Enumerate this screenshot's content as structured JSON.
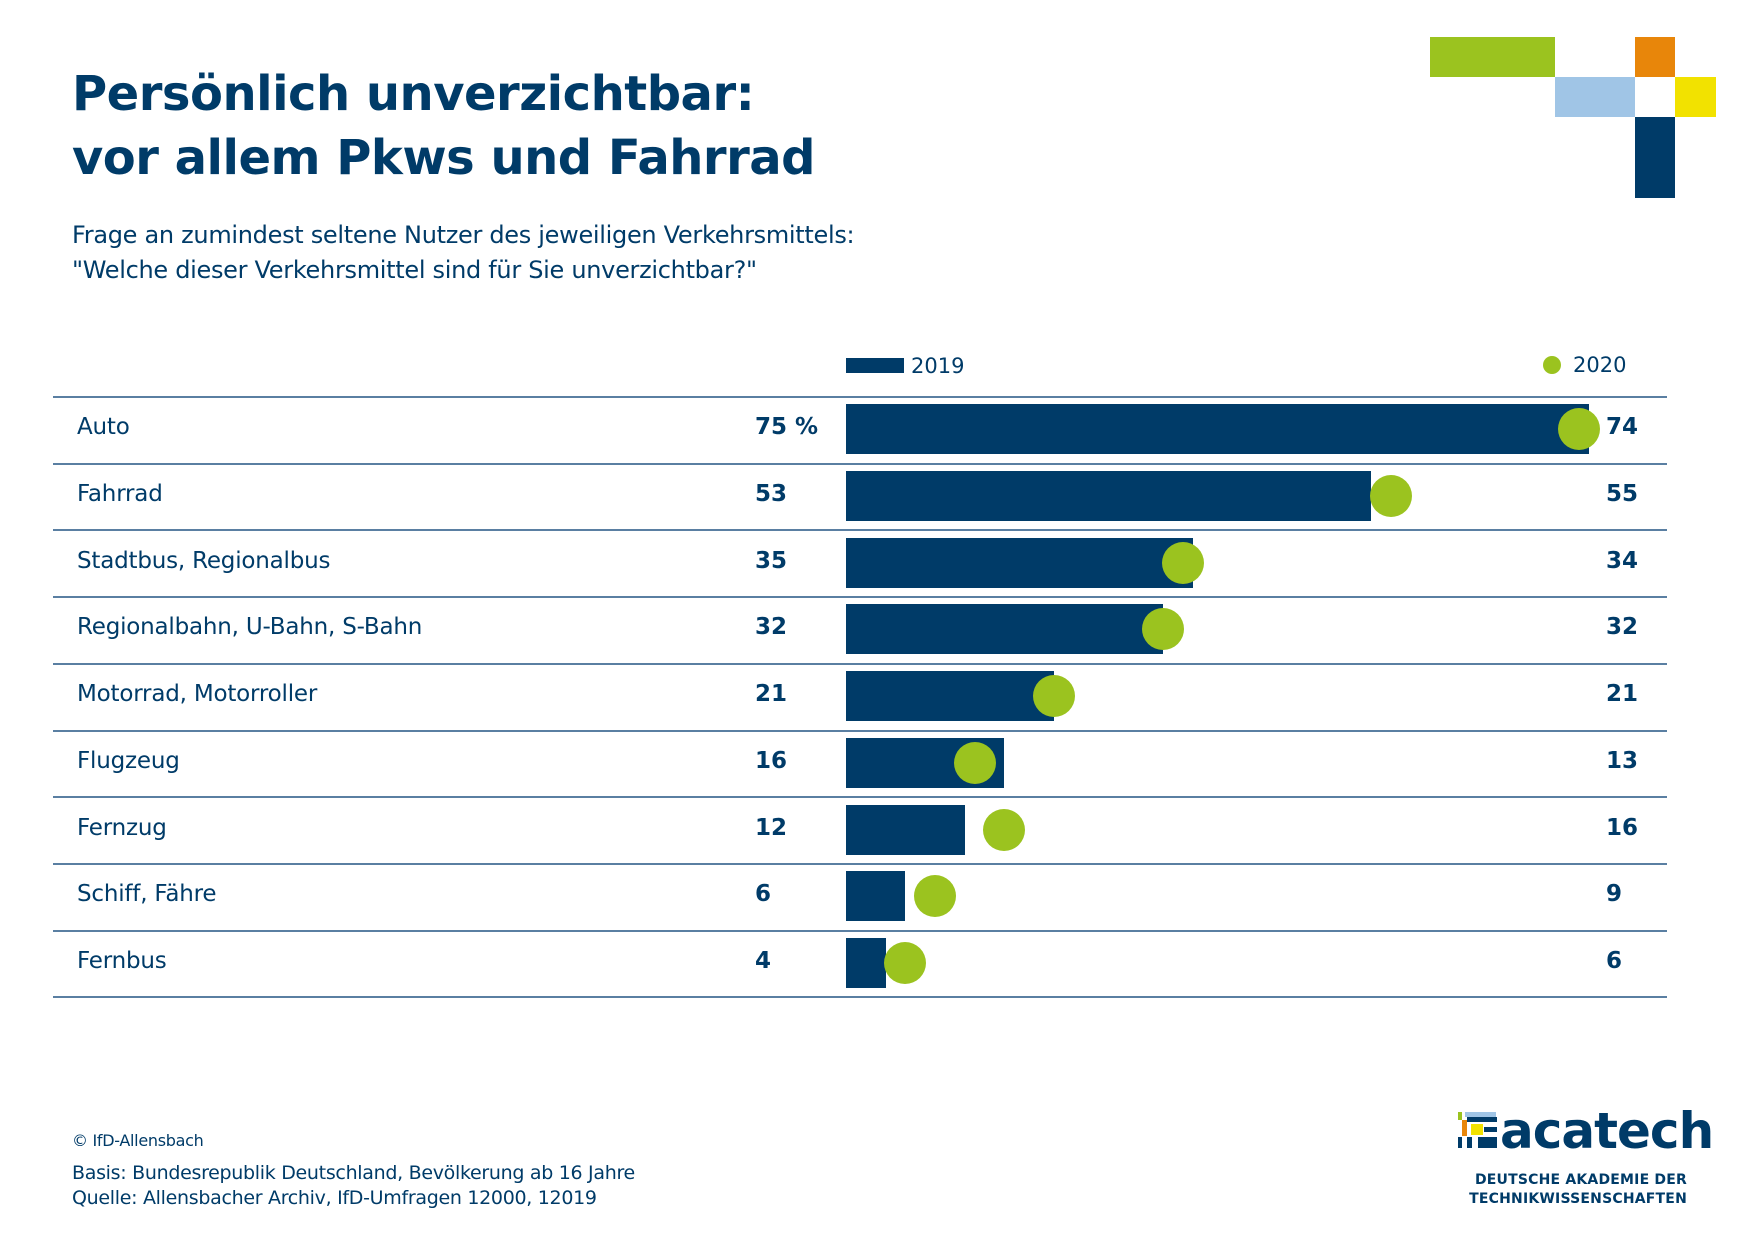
{
  "header": {
    "title_line1": "Persönlich unverzichtbar:",
    "title_line2": "vor allem Pkws und Fahrrad",
    "subtitle_line1": "Frage an zumindest seltene Nutzer des jeweiligen Verkehrsmittels:",
    "subtitle_line2": "\"Welche dieser Verkehrsmittel sind für Sie unverzichtbar?\""
  },
  "colors": {
    "navy": "#003b68",
    "green": "#9bc31f",
    "light_blue": "#a0c5e6",
    "orange": "#e8860a",
    "yellow": "#f2e200"
  },
  "chart_data": {
    "type": "bar",
    "title": "Persönlich unverzichtbar: vor allem Pkws und Fahrrad",
    "subtitle": "Frage an zumindest seltene Nutzer des jeweiligen Verkehrsmittels: \"Welche dieser Verkehrsmittel sind für Sie unverzichtbar?\"",
    "unit": "%",
    "orientation": "horizontal",
    "categories": [
      "Auto",
      "Fahrrad",
      "Stadtbus, Regionalbus",
      "Regionalbahn, U-Bahn, S-Bahn",
      "Motorrad, Motorroller",
      "Flugzeug",
      "Fernzug",
      "Schiff, Fähre",
      "Fernbus"
    ],
    "series": [
      {
        "name": "2019",
        "mark": "bar",
        "values": [
          75,
          53,
          35,
          32,
          21,
          16,
          12,
          6,
          4
        ]
      },
      {
        "name": "2020",
        "mark": "dot",
        "values": [
          74,
          55,
          34,
          32,
          21,
          13,
          16,
          9,
          6
        ]
      }
    ],
    "left_value_labels": [
      "75 %",
      "53",
      "35",
      "32",
      "21",
      "16",
      "12",
      "6",
      "4"
    ],
    "right_value_labels": [
      "74",
      "55",
      "34",
      "32",
      "21",
      "13",
      "16",
      "9",
      "6"
    ],
    "xlim": [
      0,
      75
    ],
    "grid": false,
    "legend": {
      "position": "top",
      "entries": [
        "2019",
        "2020"
      ]
    }
  },
  "legend": {
    "label_2019": "2019",
    "label_2020": "2020"
  },
  "footer": {
    "copyright": "© IfD-Allensbach",
    "basis": "Basis: Bundesrepublik Deutschland, Bevölkerung ab 16 Jahre",
    "quelle": "Quelle: Allensbacher Archiv, IfD-Umfragen 12000, 12019"
  },
  "brand": {
    "name": "acatech",
    "sub_line1": "DEUTSCHE AKADEMIE DER",
    "sub_line2": "TECHNIKWISSENSCHAFTEN"
  }
}
